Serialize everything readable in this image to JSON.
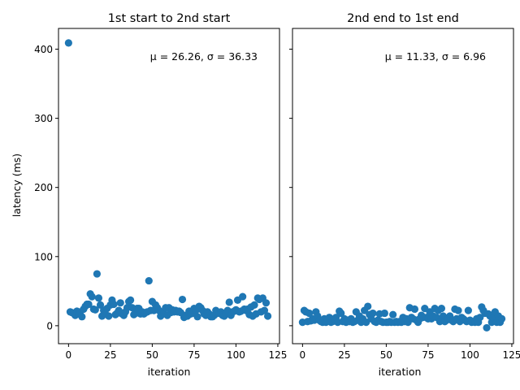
{
  "figure": {
    "ylabel": "latency (ms)"
  },
  "chart_data": [
    {
      "type": "scatter",
      "title": "1st start to 2nd start",
      "xlabel": "iteration",
      "ylabel": "latency (ms)",
      "annotation": "μ = 26.26, σ = 36.33",
      "annotation_placement": "top-right",
      "xlim": [
        -6,
        126
      ],
      "ylim": [
        -26,
        430
      ],
      "xticks": [
        0,
        25,
        50,
        75,
        100,
        125
      ],
      "yticks": [
        0,
        100,
        200,
        300,
        400
      ],
      "grid": false,
      "color": "#1f77b4",
      "series": [
        {
          "x": [
            0,
            1,
            2,
            3,
            4,
            5,
            6,
            7,
            8,
            9,
            10,
            11,
            12,
            13,
            14,
            15,
            16,
            17,
            18,
            19,
            20,
            21,
            22,
            23,
            24,
            25,
            26,
            27,
            28,
            29,
            30,
            31,
            32,
            33,
            34,
            35,
            36,
            37,
            38,
            39,
            40,
            41,
            42,
            43,
            44,
            45,
            46,
            47,
            48,
            49,
            50,
            51,
            52,
            53,
            54,
            55,
            56,
            57,
            58,
            59,
            60,
            61,
            62,
            63,
            64,
            65,
            66,
            67,
            68,
            69,
            70,
            71,
            72,
            73,
            74,
            75,
            76,
            77,
            78,
            79,
            80,
            81,
            82,
            83,
            84,
            85,
            86,
            87,
            88,
            89,
            90,
            91,
            92,
            93,
            94,
            95,
            96,
            97,
            98,
            99,
            100,
            101,
            102,
            103,
            104,
            105,
            106,
            107,
            108,
            109,
            110,
            111,
            112,
            113,
            114,
            115,
            116,
            117,
            118,
            119
          ],
          "y": [
            409,
            20,
            19,
            18,
            15,
            21,
            17,
            20,
            13,
            24,
            28,
            31,
            31,
            46,
            42,
            24,
            23,
            75,
            40,
            30,
            14,
            22,
            17,
            25,
            14,
            30,
            37,
            31,
            16,
            18,
            22,
            33,
            17,
            15,
            20,
            26,
            35,
            37,
            26,
            16,
            18,
            25,
            25,
            17,
            20,
            17,
            19,
            20,
            65,
            22,
            35,
            22,
            30,
            26,
            22,
            14,
            20,
            18,
            26,
            15,
            26,
            19,
            23,
            20,
            22,
            20,
            21,
            19,
            38,
            12,
            15,
            14,
            21,
            17,
            18,
            25,
            22,
            13,
            28,
            26,
            22,
            17,
            15,
            20,
            17,
            13,
            13,
            15,
            22,
            18,
            18,
            20,
            15,
            14,
            18,
            22,
            34,
            15,
            20,
            21,
            23,
            37,
            20,
            21,
            42,
            24,
            22,
            24,
            16,
            27,
            14,
            30,
            17,
            40,
            38,
            20,
            40,
            22,
            33,
            14
          ]
        }
      ]
    },
    {
      "type": "scatter",
      "title": "2nd end to 1st end",
      "xlabel": "iteration",
      "ylabel": "",
      "annotation": "μ = 11.33, σ = 6.96",
      "annotation_placement": "top-right",
      "xlim": [
        -6,
        126
      ],
      "ylim": [
        -26,
        430
      ],
      "xticks": [
        0,
        25,
        50,
        75,
        100,
        125
      ],
      "yticks": [
        0,
        100,
        200,
        300,
        400
      ],
      "grid": false,
      "color": "#1f77b4",
      "series": [
        {
          "x": [
            0,
            1,
            2,
            3,
            4,
            5,
            6,
            7,
            8,
            9,
            10,
            11,
            12,
            13,
            14,
            15,
            16,
            17,
            18,
            19,
            20,
            21,
            22,
            23,
            24,
            25,
            26,
            27,
            28,
            29,
            30,
            31,
            32,
            33,
            34,
            35,
            36,
            37,
            38,
            39,
            40,
            41,
            42,
            43,
            44,
            45,
            46,
            47,
            48,
            49,
            50,
            51,
            52,
            53,
            54,
            55,
            56,
            57,
            58,
            59,
            60,
            61,
            62,
            63,
            64,
            65,
            66,
            67,
            68,
            69,
            70,
            71,
            72,
            73,
            74,
            75,
            76,
            77,
            78,
            79,
            80,
            81,
            82,
            83,
            84,
            85,
            86,
            87,
            88,
            89,
            90,
            91,
            92,
            93,
            94,
            95,
            96,
            97,
            98,
            99,
            100,
            101,
            102,
            103,
            104,
            105,
            106,
            107,
            108,
            109,
            110,
            111,
            112,
            113,
            114,
            115,
            116,
            117,
            118,
            119
          ],
          "y": [
            5,
            22,
            20,
            6,
            18,
            7,
            10,
            8,
            20,
            14,
            8,
            6,
            5,
            10,
            5,
            8,
            12,
            5,
            6,
            10,
            12,
            5,
            21,
            18,
            6,
            10,
            5,
            8,
            6,
            10,
            5,
            6,
            20,
            8,
            14,
            5,
            10,
            22,
            5,
            28,
            16,
            10,
            18,
            6,
            5,
            8,
            17,
            6,
            5,
            18,
            5,
            5,
            6,
            5,
            16,
            5,
            6,
            5,
            6,
            5,
            12,
            6,
            10,
            5,
            26,
            12,
            10,
            24,
            8,
            5,
            10,
            15,
            12,
            25,
            12,
            10,
            20,
            10,
            14,
            25,
            12,
            22,
            6,
            25,
            14,
            6,
            8,
            10,
            14,
            8,
            6,
            24,
            10,
            22,
            6,
            12,
            10,
            8,
            6,
            22,
            8,
            5,
            6,
            5,
            10,
            5,
            12,
            27,
            22,
            18,
            -3,
            17,
            14,
            5,
            12,
            20,
            5,
            14,
            5,
            10
          ]
        }
      ]
    }
  ]
}
